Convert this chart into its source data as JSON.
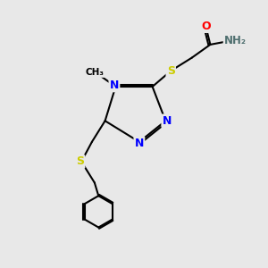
{
  "bg_color": "#e8e8e8",
  "atom_colors": {
    "C": "#000000",
    "N": "#0000ff",
    "S": "#cccc00",
    "O": "#ff0000",
    "H": "#507070"
  },
  "bond_color": "#000000",
  "font_size_atom": 9,
  "font_size_methyl": 8
}
